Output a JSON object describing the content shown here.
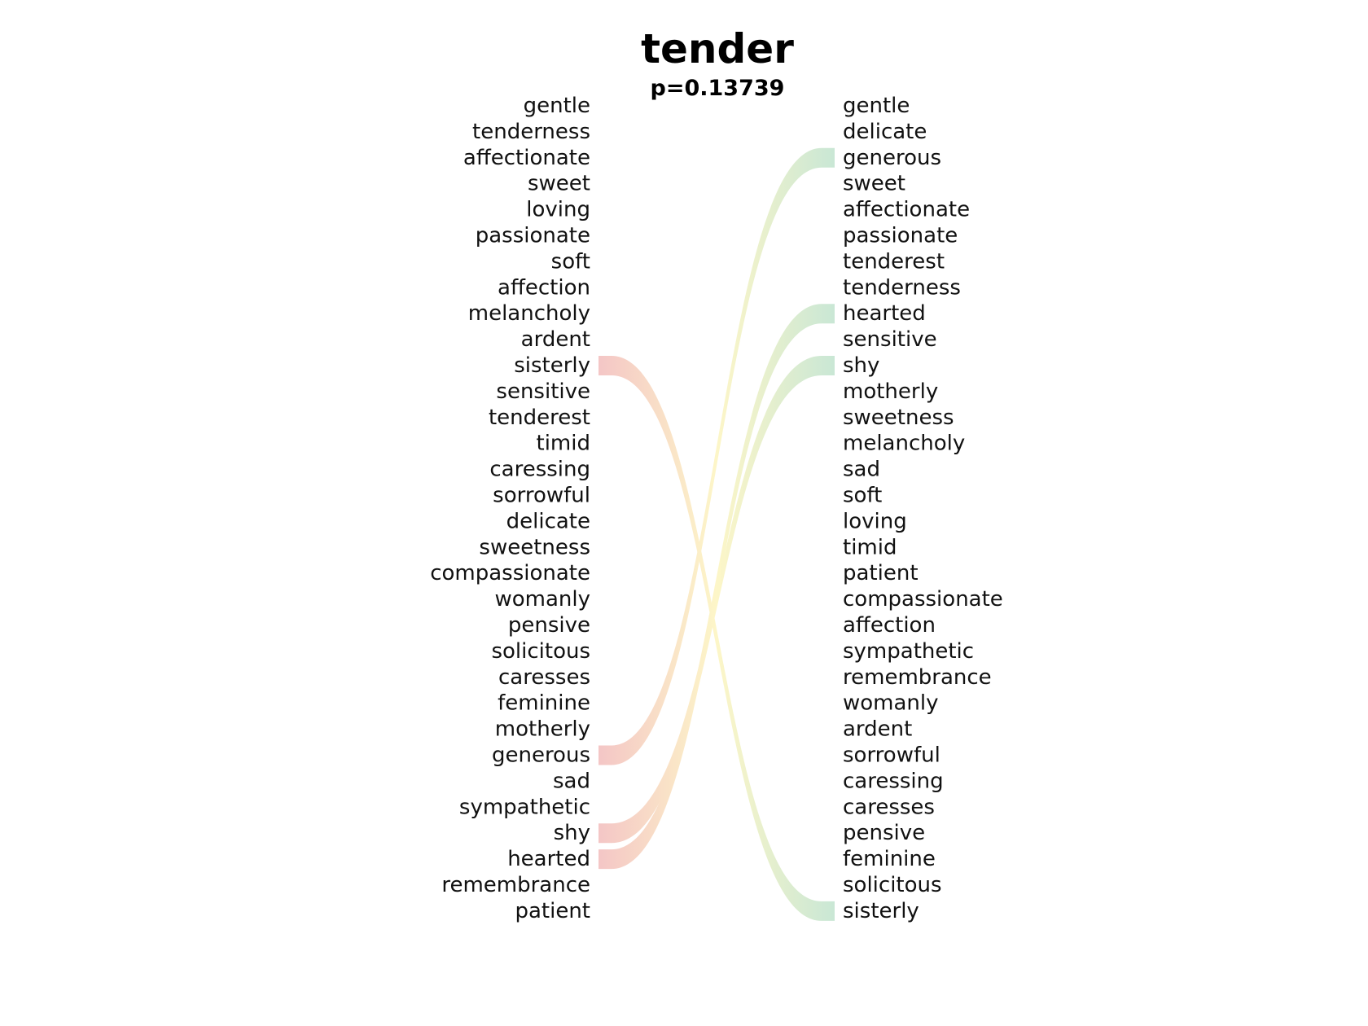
{
  "title": "tender",
  "subtitle": "p=0.13739",
  "left_words": [
    "gentle",
    "tenderness",
    "affectionate",
    "sweet",
    "loving",
    "passionate",
    "soft",
    "affection",
    "melancholy",
    "ardent",
    "sisterly",
    "sensitive",
    "tenderest",
    "timid",
    "caressing",
    "sorrowful",
    "delicate",
    "sweetness",
    "compassionate",
    "womanly",
    "pensive",
    "solicitous",
    "caresses",
    "feminine",
    "motherly",
    "generous",
    "sad",
    "sympathetic",
    "shy",
    "hearted",
    "remembrance",
    "patient"
  ],
  "right_words": [
    "gentle",
    "delicate",
    "generous",
    "sweet",
    "affectionate",
    "passionate",
    "tenderest",
    "tenderness",
    "hearted",
    "sensitive",
    "shy",
    "motherly",
    "sweetness",
    "melancholy",
    "sad",
    "soft",
    "loving",
    "timid",
    "patient",
    "compassionate",
    "affection",
    "sympathetic",
    "remembrance",
    "womanly",
    "ardent",
    "sorrowful",
    "caressing",
    "caresses",
    "pensive",
    "feminine",
    "solicitous",
    "sisterly"
  ],
  "highlighted_links": [
    {
      "word": "sisterly",
      "left_rank": 11,
      "right_rank": 32
    },
    {
      "word": "generous",
      "left_rank": 26,
      "right_rank": 3
    },
    {
      "word": "shy",
      "left_rank": 29,
      "right_rank": 11
    },
    {
      "word": "hearted",
      "left_rank": 30,
      "right_rank": 9
    }
  ],
  "colors": {
    "left_end": "#f4c6c6",
    "middle": "#fdf6c8",
    "right_end": "#c9e7d5",
    "text": "#111111"
  }
}
